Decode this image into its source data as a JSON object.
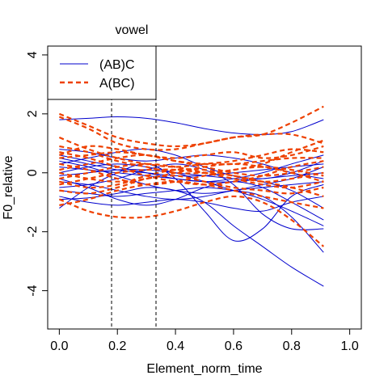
{
  "chart_data": {
    "type": "line",
    "title": "vowel",
    "xlabel": "Element_norm_time",
    "ylabel": "F0_relative",
    "xlim": [
      -0.04,
      1.04
    ],
    "ylim": [
      -5.3,
      4.3
    ],
    "xticks": [
      "0.0",
      "0.2",
      "0.4",
      "0.6",
      "0.8",
      "1.0"
    ],
    "yticks": [
      "-4",
      "-2",
      "0",
      "2",
      "4"
    ],
    "vlines": [
      0.18,
      0.333
    ],
    "legend": {
      "position": "top-left",
      "entries": [
        {
          "label": "(AB)C",
          "color": "#0000CD",
          "dash": "solid"
        },
        {
          "label": "A(BC)",
          "color": "#EE4000",
          "dash": "dashed"
        }
      ]
    },
    "grid": false,
    "x": [
      0.0,
      0.1,
      0.2,
      0.3,
      0.4,
      0.5,
      0.6,
      0.7,
      0.8,
      0.91
    ],
    "series": [
      {
        "group": "(AB)C",
        "values": [
          1.8,
          1.85,
          1.9,
          1.85,
          1.7,
          1.5,
          1.35,
          1.3,
          1.4,
          1.8
        ]
      },
      {
        "group": "(AB)C",
        "values": [
          -0.9,
          -0.85,
          -0.7,
          -0.5,
          -0.6,
          -1.0,
          -1.8,
          -2.5,
          -3.2,
          -3.85
        ]
      },
      {
        "group": "(AB)C",
        "values": [
          -1.2,
          -0.5,
          0.0,
          0.3,
          -0.2,
          -1.3,
          -2.3,
          -1.9,
          -0.8,
          -0.4
        ]
      },
      {
        "group": "(AB)C",
        "values": [
          0.3,
          0.5,
          0.7,
          0.8,
          0.6,
          0.2,
          -0.1,
          -0.2,
          0.0,
          0.4
        ]
      },
      {
        "group": "(AB)C",
        "values": [
          -0.3,
          -0.4,
          -0.6,
          -0.8,
          -0.9,
          -0.8,
          -0.6,
          -0.5,
          -0.4,
          -0.3
        ]
      },
      {
        "group": "(AB)C",
        "values": [
          0.5,
          0.3,
          0.1,
          0.0,
          -0.1,
          -0.1,
          0.0,
          0.1,
          0.2,
          0.3
        ]
      },
      {
        "group": "(AB)C",
        "values": [
          -0.6,
          -0.7,
          -0.8,
          -0.7,
          -0.6,
          -0.5,
          -0.6,
          -0.8,
          -1.5,
          -2.7
        ]
      },
      {
        "group": "(AB)C",
        "values": [
          0.0,
          0.2,
          0.3,
          0.2,
          0.0,
          -0.3,
          -0.6,
          -0.9,
          -1.3,
          -1.8
        ]
      },
      {
        "group": "(AB)C",
        "values": [
          -0.2,
          -0.5,
          -0.9,
          -1.1,
          -0.9,
          -0.5,
          -0.3,
          -0.5,
          -1.0,
          -1.6
        ]
      },
      {
        "group": "(AB)C",
        "values": [
          0.8,
          0.7,
          0.5,
          0.4,
          0.5,
          0.6,
          0.5,
          0.3,
          0.0,
          -0.2
        ]
      },
      {
        "group": "(AB)C",
        "values": [
          0.2,
          0.1,
          0.0,
          -0.1,
          -0.2,
          -0.3,
          -0.3,
          -0.2,
          -0.1,
          0.0
        ]
      },
      {
        "group": "(AB)C",
        "values": [
          -0.5,
          -0.4,
          -0.2,
          0.1,
          0.3,
          0.1,
          -0.4,
          -1.4,
          -1.9,
          -1.9
        ]
      },
      {
        "group": "(AB)C",
        "values": [
          -0.8,
          -1.0,
          -1.1,
          -1.0,
          -0.9,
          -1.0,
          -1.2,
          -1.3,
          -1.0,
          -0.8
        ]
      },
      {
        "group": "(AB)C",
        "values": [
          0.6,
          0.4,
          0.2,
          0.0,
          -0.2,
          -0.3,
          -0.2,
          0.0,
          0.3,
          0.6
        ]
      },
      {
        "group": "(AB)C",
        "values": [
          -0.1,
          0.0,
          0.1,
          0.1,
          0.0,
          -0.1,
          -0.2,
          -0.3,
          -0.6,
          -1.2
        ]
      },
      {
        "group": "(AB)C",
        "values": [
          0.4,
          0.2,
          -0.1,
          -0.4,
          -0.6,
          -0.7,
          -0.6,
          -0.4,
          -0.2,
          0.2
        ]
      },
      {
        "group": "A(BC)",
        "values": [
          2.0,
          1.6,
          1.2,
          1.0,
          0.9,
          1.0,
          1.2,
          1.3,
          1.7,
          2.25
        ]
      },
      {
        "group": "A(BC)",
        "values": [
          1.9,
          1.5,
          1.0,
          0.8,
          0.8,
          1.0,
          1.2,
          1.3,
          1.3,
          1.0
        ]
      },
      {
        "group": "A(BC)",
        "values": [
          -0.9,
          -1.3,
          -1.5,
          -1.5,
          -1.3,
          -1.0,
          -0.8,
          -1.0,
          -1.6,
          -2.5
        ]
      },
      {
        "group": "A(BC)",
        "values": [
          0.6,
          0.9,
          0.8,
          0.6,
          0.5,
          0.6,
          0.7,
          0.5,
          0.6,
          0.9
        ]
      },
      {
        "group": "A(BC)",
        "values": [
          -0.4,
          -0.2,
          0.0,
          0.1,
          0.1,
          0.0,
          -0.1,
          -0.3,
          -0.5,
          -0.8
        ]
      },
      {
        "group": "A(BC)",
        "values": [
          0.1,
          0.3,
          0.5,
          0.6,
          0.4,
          0.2,
          0.0,
          -0.1,
          0.0,
          0.2
        ]
      },
      {
        "group": "A(BC)",
        "values": [
          0.9,
          0.7,
          0.4,
          0.2,
          0.0,
          0.0,
          0.1,
          0.3,
          0.7,
          1.1
        ]
      },
      {
        "group": "A(BC)",
        "values": [
          -0.6,
          -0.7,
          -0.5,
          -0.2,
          -0.1,
          -0.3,
          -0.5,
          -0.6,
          -0.7,
          -0.5
        ]
      },
      {
        "group": "A(BC)",
        "values": [
          0.3,
          0.1,
          -0.2,
          -0.4,
          -0.3,
          -0.1,
          0.1,
          0.2,
          0.1,
          -0.1
        ]
      },
      {
        "group": "A(BC)",
        "values": [
          -0.2,
          0.0,
          0.2,
          0.3,
          0.2,
          0.0,
          -0.2,
          -0.4,
          -0.5,
          -0.3
        ]
      },
      {
        "group": "A(BC)",
        "values": [
          0.5,
          0.6,
          0.7,
          0.6,
          0.4,
          0.3,
          0.3,
          0.4,
          0.5,
          0.5
        ]
      },
      {
        "group": "A(BC)",
        "values": [
          -1.1,
          -0.9,
          -0.6,
          -0.4,
          -0.3,
          -0.4,
          -0.6,
          -0.8,
          -1.0,
          -1.2
        ]
      },
      {
        "group": "A(BC)",
        "values": [
          0.0,
          -0.2,
          -0.3,
          -0.2,
          0.0,
          0.2,
          0.3,
          0.2,
          0.0,
          -0.3
        ]
      },
      {
        "group": "A(BC)",
        "values": [
          1.2,
          0.8,
          0.5,
          0.3,
          0.2,
          0.3,
          0.4,
          0.6,
          0.8,
          0.7
        ]
      },
      {
        "group": "A(BC)",
        "values": [
          -0.3,
          -0.5,
          -0.4,
          -0.1,
          0.1,
          0.1,
          -0.1,
          -0.3,
          -0.2,
          0.0
        ]
      },
      {
        "group": "A(BC)",
        "values": [
          0.7,
          0.5,
          0.2,
          -0.1,
          -0.3,
          -0.4,
          -0.3,
          -0.1,
          0.2,
          0.4
        ]
      }
    ]
  }
}
